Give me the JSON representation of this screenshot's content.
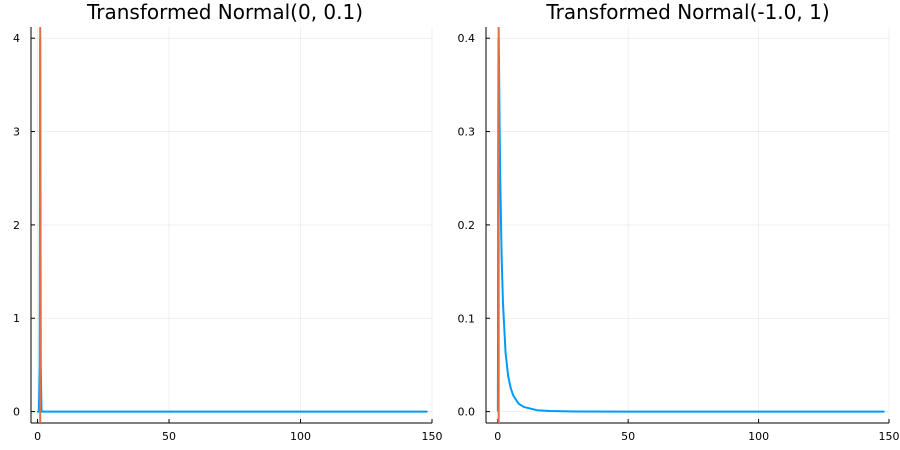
{
  "chart_data": [
    {
      "type": "line",
      "title": "Transformed Normal(0, 0.1)",
      "xlabel": "",
      "ylabel": "",
      "xlim": [
        -2.5,
        150
      ],
      "ylim": [
        -0.1224,
        4.12
      ],
      "xticks": [
        0,
        50,
        100,
        150
      ],
      "xtick_labels": [
        "0",
        "50",
        "100",
        "150"
      ],
      "yticks": [
        0,
        1,
        2,
        3,
        4
      ],
      "ytick_labels": [
        "0",
        "1",
        "2",
        "3",
        "4"
      ],
      "grid": true,
      "legend": "none",
      "series": [
        {
          "color": "#009af9",
          "x": [
            0.1,
            0.5,
            0.8,
            1.0,
            1.2,
            1.5,
            2,
            3,
            5,
            10,
            20,
            50,
            100,
            148
          ],
          "y": [
            0,
            0,
            0.5,
            3.99,
            0.5,
            0,
            0,
            0,
            0,
            0,
            0,
            0,
            0,
            0
          ]
        },
        {
          "color": "#e26f46",
          "x": [
            1.0,
            1.0
          ],
          "y": [
            -0.1224,
            4.12
          ]
        }
      ]
    },
    {
      "type": "line",
      "title": "Transformed Normal(-1.0, 1)",
      "xlabel": "",
      "ylabel": "",
      "xlim": [
        -4.5,
        150
      ],
      "ylim": [
        -0.0122,
        0.412
      ],
      "xticks": [
        0,
        50,
        100,
        150
      ],
      "xtick_labels": [
        "0",
        "50",
        "100",
        "150"
      ],
      "yticks": [
        0,
        0.1,
        0.2,
        0.3,
        0.4
      ],
      "ytick_labels": [
        "0.0",
        "0.1",
        "0.2",
        "0.3",
        "0.4"
      ],
      "grid": true,
      "legend": "none",
      "series": [
        {
          "color": "#009af9",
          "x": [
            0.05,
            0.1,
            0.2,
            0.3,
            0.37,
            0.5,
            0.7,
            1,
            1.5,
            2,
            3,
            4,
            5,
            6,
            8,
            10,
            15,
            20,
            30,
            50,
            75,
            100,
            125,
            148
          ],
          "y": [
            0.001,
            0.06,
            0.3,
            0.398,
            0.4,
            0.37,
            0.31,
            0.242,
            0.165,
            0.117,
            0.063,
            0.038,
            0.025,
            0.017,
            0.0085,
            0.005,
            0.0015,
            0.0006,
            0.0001,
            0,
            0,
            0,
            0,
            0
          ]
        },
        {
          "color": "#e26f46",
          "x": [
            0.37,
            0.37
          ],
          "y": [
            -0.0122,
            0.412
          ]
        }
      ]
    }
  ]
}
